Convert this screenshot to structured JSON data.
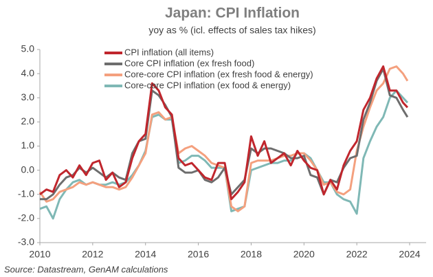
{
  "chart_data": {
    "type": "line",
    "title": "Japan: CPI Inflation",
    "subtitle": "yoy as % (icl. effects of sales tax hikes)",
    "source": "Source: Datastream,  GenAM calculations",
    "x": [
      2010,
      2010.25,
      2010.5,
      2010.75,
      2011,
      2011.25,
      2011.5,
      2011.75,
      2012,
      2012.25,
      2012.5,
      2012.75,
      2013,
      2013.25,
      2013.5,
      2013.75,
      2014,
      2014.25,
      2014.5,
      2014.75,
      2015,
      2015.25,
      2015.5,
      2015.75,
      2016,
      2016.25,
      2016.5,
      2016.75,
      2017,
      2017.25,
      2017.5,
      2017.75,
      2018,
      2018.25,
      2018.5,
      2018.75,
      2019,
      2019.25,
      2019.5,
      2019.75,
      2020,
      2020.25,
      2020.5,
      2020.75,
      2021,
      2021.25,
      2021.5,
      2021.75,
      2022,
      2022.25,
      2022.5,
      2022.75,
      2023,
      2023.25,
      2023.5,
      2023.75,
      2023.92
    ],
    "series": [
      {
        "name": "CPI inflation (all items)",
        "color": "#c0262d",
        "values": [
          -1.0,
          -0.8,
          -0.9,
          -0.2,
          0.0,
          -0.3,
          0.2,
          -0.2,
          0.3,
          0.4,
          -0.4,
          -0.1,
          -0.7,
          -0.5,
          0.5,
          1.2,
          1.5,
          3.6,
          3.3,
          2.6,
          2.3,
          0.5,
          0.2,
          0.3,
          0.0,
          -0.3,
          -0.4,
          0.3,
          0.3,
          -1.2,
          -0.9,
          -0.5,
          1.4,
          0.6,
          1.2,
          0.3,
          0.5,
          0.7,
          0.2,
          0.8,
          0.4,
          0.1,
          0.0,
          -1.0,
          -0.4,
          -0.8,
          0.2,
          0.8,
          1.2,
          2.5,
          3.0,
          3.8,
          4.3,
          3.3,
          3.3,
          2.8,
          2.6
        ]
      },
      {
        "name": "Core CPI inflation (ex fresh food)",
        "color": "#6d6d6d",
        "values": [
          -1.2,
          -1.2,
          -1.0,
          -0.6,
          -0.3,
          -0.2,
          0.1,
          -0.1,
          0.1,
          -0.1,
          -0.3,
          -0.1,
          -0.3,
          -0.4,
          0.7,
          1.2,
          1.3,
          3.3,
          3.1,
          2.7,
          2.2,
          0.1,
          -0.1,
          -0.1,
          0.0,
          -0.4,
          -0.5,
          -0.3,
          0.1,
          -1.0,
          -0.7,
          -0.4,
          0.9,
          0.7,
          0.9,
          0.9,
          0.8,
          0.7,
          0.5,
          0.5,
          0.6,
          -0.2,
          -0.3,
          -1.0,
          -0.4,
          -0.5,
          0.1,
          0.5,
          0.6,
          2.1,
          2.8,
          3.7,
          4.2,
          3.1,
          3.0,
          2.5,
          2.2
        ]
      },
      {
        "name": "Core-core CPI inflation (ex fresh food & energy)",
        "color": "#f4a07e",
        "values": [
          -0.9,
          -1.3,
          -1.2,
          -0.9,
          -0.8,
          -0.7,
          -0.5,
          -0.6,
          -0.5,
          -0.6,
          -0.7,
          -0.7,
          -0.8,
          -0.7,
          -0.3,
          0.2,
          0.7,
          2.3,
          2.4,
          2.1,
          2.2,
          0.7,
          0.9,
          1.0,
          0.8,
          0.6,
          0.3,
          0.2,
          0.1,
          -1.5,
          -1.7,
          -1.5,
          0.3,
          0.4,
          0.4,
          0.4,
          0.5,
          0.6,
          0.6,
          0.7,
          0.7,
          0.4,
          0.0,
          -0.6,
          -0.5,
          -0.9,
          -1.0,
          -0.8,
          0.8,
          1.8,
          2.6,
          3.3,
          3.6,
          4.2,
          4.3,
          4.0,
          3.7
        ]
      },
      {
        "name": "Core-core CPI inflation (ex food & energy)",
        "color": "#7fb8b5",
        "values": [
          -1.6,
          -1.5,
          -2.0,
          -1.2,
          -0.8,
          -0.5,
          -0.4,
          -0.6,
          -0.5,
          -0.6,
          -0.6,
          -0.5,
          -0.6,
          -0.5,
          -0.2,
          0.2,
          0.8,
          2.2,
          2.3,
          2.1,
          2.1,
          0.3,
          0.4,
          0.6,
          0.6,
          0.4,
          0.1,
          0.1,
          0.1,
          -1.7,
          -1.6,
          -1.5,
          0.0,
          0.1,
          0.2,
          0.3,
          0.3,
          0.4,
          0.4,
          0.7,
          0.7,
          0.5,
          0.0,
          -0.5,
          -0.5,
          -1.0,
          -1.2,
          -1.3,
          -1.8,
          0.5,
          1.2,
          1.8,
          2.2,
          3.0,
          3.3,
          3.0,
          2.8
        ]
      }
    ],
    "xlim": [
      2010,
      2025
    ],
    "xticks": [
      2010,
      2012,
      2014,
      2016,
      2018,
      2020,
      2022,
      2024
    ],
    "ylim": [
      -3,
      5
    ],
    "yticks": [
      {
        "value": -3,
        "label": "-3.0"
      },
      {
        "value": -2,
        "label": "-2.0"
      },
      {
        "value": -1,
        "label": "-1.0"
      },
      {
        "value": 0,
        "label": "0.0"
      },
      {
        "value": 1,
        "label": "1.0"
      },
      {
        "value": 2,
        "label": "2.0"
      },
      {
        "value": 3,
        "label": "3.0"
      },
      {
        "value": 4,
        "label": "4.0"
      },
      {
        "value": 5,
        "label": "5.0"
      }
    ],
    "legend": "upper left"
  }
}
